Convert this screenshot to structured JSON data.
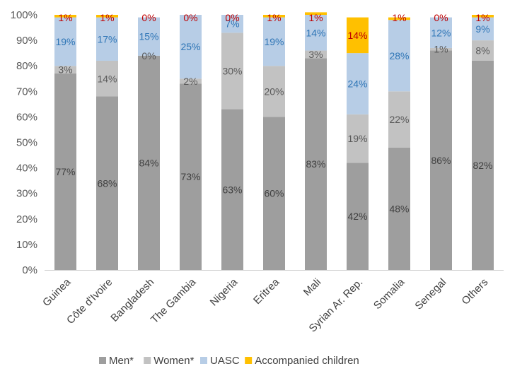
{
  "chart_data": {
    "type": "bar",
    "stacked": true,
    "categories": [
      "Guinea",
      "Côte d'Ivoire",
      "Bangladesh",
      "The Gambia",
      "Nigeria",
      "Eritrea",
      "Mali",
      "Syrian Ar. Rep.",
      "Somalia",
      "Senegal",
      "Others"
    ],
    "series": [
      {
        "name": "Men*",
        "color": "#9e9e9e",
        "label_color": "#404040",
        "values": [
          77,
          68,
          84,
          73,
          63,
          60,
          83,
          42,
          48,
          86,
          82
        ]
      },
      {
        "name": "Women*",
        "color": "#c2c2c2",
        "label_color": "#595959",
        "values": [
          3,
          14,
          0,
          2,
          30,
          20,
          3,
          19,
          22,
          1,
          8
        ]
      },
      {
        "name": "UASC",
        "color": "#b7cde6",
        "label_color": "#2e75b6",
        "values": [
          19,
          17,
          15,
          25,
          7,
          19,
          14,
          24,
          28,
          12,
          9
        ]
      },
      {
        "name": "Accompanied children",
        "color": "#ffc000",
        "label_color": "#c00000",
        "values": [
          1,
          1,
          0,
          0,
          0,
          1,
          1,
          14,
          1,
          0,
          1
        ]
      }
    ],
    "y_ticks": [
      "0%",
      "10%",
      "20%",
      "30%",
      "40%",
      "50%",
      "60%",
      "70%",
      "80%",
      "90%",
      "100%"
    ],
    "ylim": [
      0,
      100
    ],
    "legend_position": "bottom",
    "grid": false
  }
}
